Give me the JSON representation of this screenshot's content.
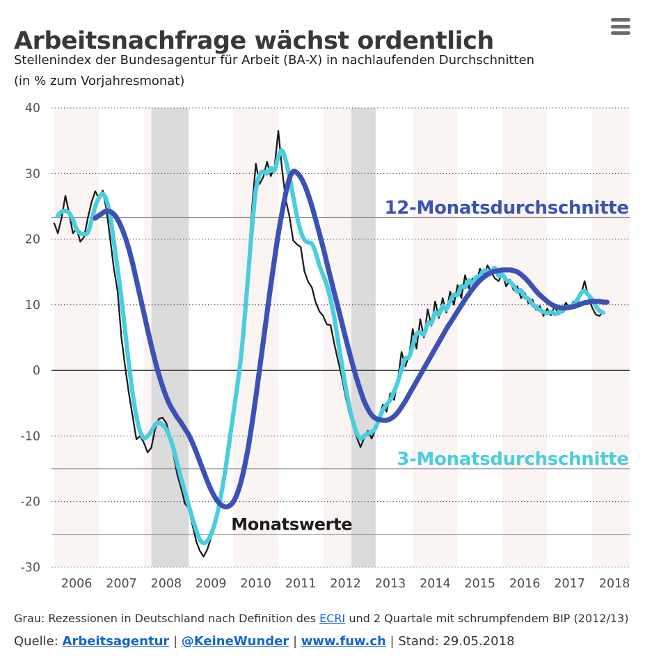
{
  "chart_data": {
    "type": "line",
    "title": "Arbeitsnachfrage wächst ordentlich",
    "subtitle1": "Stellenindex der Bundesagentur für Arbeit (BA-X) in nachlaufenden Durchschnitten",
    "subtitle2": "(in % zum Vorjahresmonat)",
    "xlim": [
      2005.94,
      2018.84
    ],
    "ylim": [
      -30,
      40
    ],
    "grid": "dotted-horizontal",
    "y_ticks": [
      40,
      30,
      20,
      10,
      0,
      -10,
      -20,
      -30
    ],
    "x_ticks": [
      2006,
      2007,
      2008,
      2009,
      2010,
      2011,
      2012,
      2013,
      2014,
      2015,
      2016,
      2017,
      2018
    ],
    "shaded_years": [
      2006,
      2008,
      2010,
      2012,
      2014,
      2016,
      2018
    ],
    "recession_bands": [
      {
        "from": 2008.17,
        "to": 2009.0
      },
      {
        "from": 2012.63,
        "to": 2013.17
      }
    ],
    "rule_lines": [
      23.3,
      -15,
      -25
    ],
    "colors": {
      "year_band": "#faf4f3",
      "recession_band": "#dbdbdb",
      "grid_dots": "#3f3f3f",
      "zero_line": "#2b2b2b",
      "baseline": "#a9b6da",
      "rule_line": "#909090",
      "y_tick": "#54545a",
      "x_tick": "#4c4c4c",
      "accent_blue": "#3d51b5",
      "accent_cyan": "#4acede",
      "accent_black": "#1b1b1b",
      "link_blue": "#1565d0"
    },
    "annotations": [
      {
        "text": "12-Monatsdurchschnitte",
        "color": "#3d51b5",
        "x": 2018.82,
        "y": 23.9,
        "anchor": "end",
        "size": 26
      },
      {
        "text": "3-Monatsdurchschnitte",
        "color": "#4acede",
        "x": 2018.82,
        "y": -14.4,
        "anchor": "end",
        "size": 26
      },
      {
        "text": "Monatswerte",
        "color": "#1c1c1c",
        "x": 2011.3,
        "y": -24.3,
        "anchor": "middle",
        "size": 24
      }
    ],
    "series": [
      {
        "id": "monatswerte",
        "name": "Monatswerte",
        "color": "#1b1b1b",
        "width": 2.3,
        "smooth": false,
        "start": 2006.0,
        "values": [
          22.4,
          20.9,
          23.3,
          26.6,
          24.0,
          20.9,
          21.6,
          19.6,
          20.3,
          23.2,
          25.6,
          27.3,
          26.2,
          27.4,
          24.5,
          20.0,
          15.4,
          12.0,
          5.0,
          0.5,
          -3.5,
          -7.0,
          -10.5,
          -10.0,
          -11.0,
          -12.5,
          -11.8,
          -9.0,
          -7.4,
          -7.2,
          -8.0,
          -10.0,
          -13.0,
          -16.0,
          -18.0,
          -20.3,
          -21.0,
          -23.5,
          -26.0,
          -27.5,
          -28.4,
          -27.3,
          -25.5,
          -23.5,
          -20.5,
          -17.0,
          -13.5,
          -10.0,
          -7.0,
          -3.0,
          2.0,
          9.0,
          17.0,
          25.0,
          31.5,
          28.4,
          29.5,
          31.8,
          29.6,
          31.0,
          36.5,
          30.7,
          26.0,
          23.4,
          19.8,
          19.2,
          18.8,
          15.1,
          13.5,
          12.6,
          10.4,
          9.0,
          8.3,
          7.0,
          6.9,
          4.0,
          1.5,
          -1.0,
          -4.0,
          -6.5,
          -8.5,
          -10.2,
          -11.7,
          -10.3,
          -9.2,
          -10.4,
          -9.0,
          -7.0,
          -5.2,
          -6.3,
          -3.5,
          -4.5,
          -1.5,
          2.8,
          0.6,
          2.2,
          6.3,
          3.3,
          7.8,
          5.0,
          9.3,
          6.8,
          10.5,
          8.0,
          11.0,
          8.8,
          12.0,
          10.0,
          13.0,
          11.0,
          14.5,
          12.5,
          14.0,
          13.2,
          15.5,
          14.2,
          16.0,
          15.0,
          14.0,
          13.6,
          14.8,
          12.8,
          13.8,
          12.2,
          12.8,
          11.0,
          11.8,
          10.2,
          10.8,
          9.2,
          9.8,
          8.3,
          9.4,
          8.4,
          9.8,
          8.5,
          9.2,
          10.3,
          9.4,
          10.5,
          10.0,
          11.5,
          13.6,
          11.3,
          9.6,
          8.5,
          8.3,
          9.0
        ]
      },
      {
        "id": "3-monatsdurchschnitte",
        "name": "3-Monatsdurchschnitte",
        "color": "#4acede",
        "width": 6.2,
        "smooth": true,
        "start": 2006.0833,
        "values": [
          23.6,
          24.2,
          24.3,
          24.0,
          23.0,
          21.5,
          20.9,
          20.8,
          21.0,
          22.8,
          25.0,
          26.3,
          26.9,
          26.0,
          23.5,
          19.5,
          15.5,
          11.0,
          6.0,
          1.0,
          -3.5,
          -7.0,
          -9.3,
          -10.3,
          -10.0,
          -9.3,
          -8.3,
          -8.0,
          -8.3,
          -9.0,
          -10.3,
          -12.0,
          -14.3,
          -16.5,
          -18.5,
          -20.5,
          -22.5,
          -24.3,
          -25.8,
          -26.3,
          -26.0,
          -25.0,
          -23.3,
          -21.0,
          -18.0,
          -14.5,
          -10.5,
          -6.5,
          -2.5,
          2.0,
          8.0,
          15.0,
          22.0,
          27.5,
          29.8,
          30.3,
          30.0,
          30.8,
          30.5,
          32.5,
          33.5,
          32.0,
          29.5,
          26.5,
          23.5,
          21.2,
          19.9,
          19.5,
          19.3,
          18.0,
          16.0,
          14.5,
          13.0,
          10.8,
          8.0,
          4.5,
          1.0,
          -2.5,
          -5.5,
          -7.8,
          -9.5,
          -10.4,
          -10.0,
          -9.6,
          -9.4,
          -8.8,
          -7.4,
          -6.0,
          -5.2,
          -4.5,
          -3.2,
          -1.8,
          0.2,
          1.8,
          2.0,
          3.8,
          5.5,
          5.8,
          5.5,
          7.2,
          7.2,
          8.8,
          8.5,
          9.8,
          9.3,
          10.5,
          11.5,
          11.5,
          12.8,
          12.7,
          13.7,
          13.3,
          14.2,
          14.4,
          15.2,
          15.1,
          15.0,
          15.6,
          14.4,
          14.6,
          13.8,
          13.5,
          12.9,
          12.0,
          12.2,
          11.2,
          10.9,
          10.1,
          9.6,
          9.2,
          8.9,
          8.7,
          8.9,
          8.6,
          8.8,
          9.0,
          9.6,
          9.7,
          10.0,
          10.7,
          11.7,
          12.1,
          11.5,
          10.8,
          9.8,
          9.1,
          8.8
        ]
      },
      {
        "id": "12-monatsdurchschnitte",
        "name": "12-Monatsdurchschnitte",
        "color": "#3d51b5",
        "width": 7.2,
        "smooth": true,
        "start": 2006.9167,
        "values": [
          23.2,
          23.6,
          24.0,
          24.3,
          24.2,
          23.8,
          23.0,
          21.8,
          20.3,
          18.5,
          16.3,
          13.8,
          11.3,
          8.8,
          6.2,
          3.8,
          1.5,
          -0.6,
          -2.4,
          -4.0,
          -5.3,
          -6.3,
          -7.2,
          -8.0,
          -8.9,
          -9.8,
          -11.0,
          -12.4,
          -13.9,
          -15.4,
          -16.9,
          -18.2,
          -19.3,
          -20.1,
          -20.6,
          -20.8,
          -20.6,
          -20.0,
          -18.8,
          -17.0,
          -14.6,
          -11.6,
          -8.0,
          -4.0,
          0.2,
          4.5,
          8.8,
          13.0,
          17.0,
          20.8,
          24.0,
          27.0,
          29.3,
          30.3,
          30.1,
          29.4,
          28.3,
          26.8,
          25.0,
          23.0,
          20.9,
          18.7,
          16.4,
          14.1,
          11.8,
          9.6,
          7.3,
          5.0,
          2.8,
          0.7,
          -1.3,
          -3.1,
          -4.7,
          -5.9,
          -6.8,
          -7.3,
          -7.5,
          -7.6,
          -7.6,
          -7.4,
          -7.0,
          -6.4,
          -5.6,
          -4.7,
          -3.7,
          -2.7,
          -1.7,
          -0.7,
          0.3,
          1.3,
          2.3,
          3.3,
          4.3,
          5.3,
          6.3,
          7.2,
          8.1,
          9.0,
          9.9,
          10.8,
          11.6,
          12.4,
          13.1,
          13.7,
          14.2,
          14.6,
          14.9,
          15.1,
          15.2,
          15.3,
          15.3,
          15.3,
          15.2,
          15.0,
          14.6,
          14.1,
          13.5,
          12.8,
          12.1,
          11.5,
          11.0,
          10.5,
          10.1,
          9.8,
          9.6,
          9.5,
          9.5,
          9.6,
          9.7,
          9.9,
          10.1,
          10.3,
          10.4,
          10.5,
          10.5,
          10.5,
          10.4,
          10.4
        ]
      }
    ]
  },
  "footer": {
    "note_prefix": "Grau: Rezessionen in Deutschland nach Definition des ",
    "note_link": "ECRI",
    "note_suffix": " und 2 Quartale mit schrumpfendem BIP (2012/13)",
    "source_label": "Quelle: ",
    "link1": "Arbeitsagentur",
    "link2": "@KeineWunder",
    "link3": "www.fuw.ch",
    "separator": " | ",
    "stand": "Stand: 29.05.2018"
  }
}
